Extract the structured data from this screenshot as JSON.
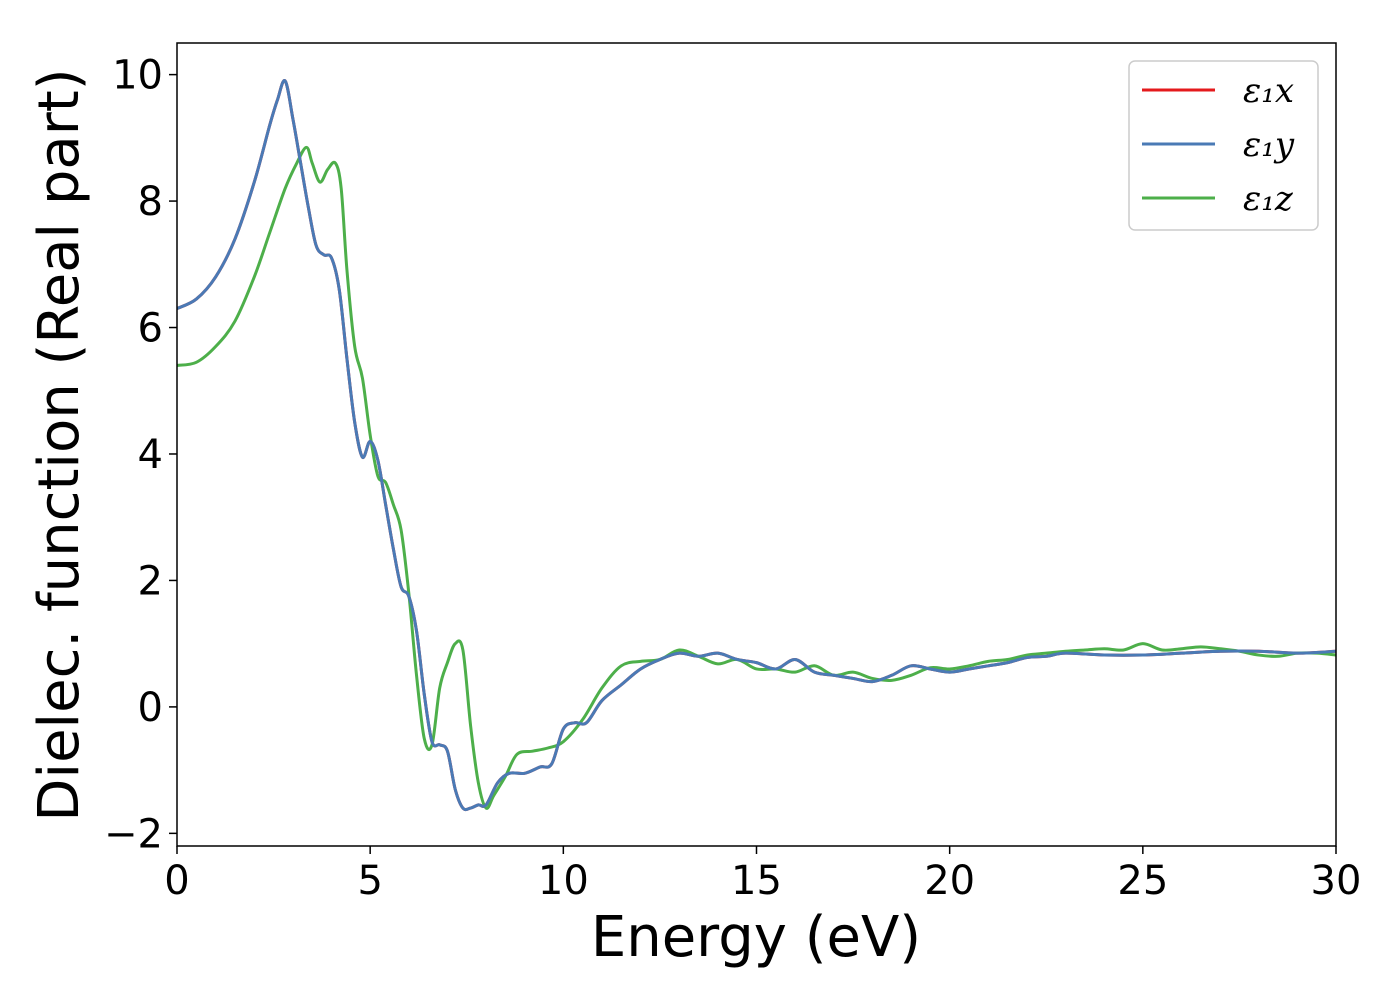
{
  "chart_data": {
    "type": "line",
    "title": "",
    "xlabel": "Energy (eV)",
    "ylabel": "Dielec. function (Real part)",
    "xlim": [
      0,
      30
    ],
    "ylim": [
      -2.2,
      10.5
    ],
    "xticks": [
      0,
      5,
      10,
      15,
      20,
      25,
      30
    ],
    "xtick_labels": [
      "0",
      "5",
      "10",
      "15",
      "20",
      "25",
      "30"
    ],
    "yticks": [
      -2,
      0,
      2,
      4,
      6,
      8,
      10
    ],
    "ytick_labels": [
      "−2",
      "0",
      "2",
      "4",
      "6",
      "8",
      "10"
    ],
    "grid": false,
    "legend_position": "top-right",
    "series": [
      {
        "name": "ε₁x",
        "color": "#e41a1c",
        "x": [
          0,
          0.5,
          1.0,
          1.5,
          2.0,
          2.4,
          2.6,
          2.8,
          3.0,
          3.2,
          3.4,
          3.6,
          3.8,
          4.0,
          4.2,
          4.4,
          4.6,
          4.8,
          5.0,
          5.2,
          5.4,
          5.6,
          5.8,
          6.0,
          6.2,
          6.4,
          6.6,
          6.8,
          7.0,
          7.2,
          7.4,
          7.6,
          7.8,
          8.0,
          8.3,
          8.6,
          9.0,
          9.4,
          9.7,
          10.0,
          10.3,
          10.6,
          11.0,
          11.5,
          12.0,
          12.5,
          13.0,
          13.5,
          14.0,
          14.5,
          15.0,
          15.5,
          16.0,
          16.5,
          17.0,
          17.5,
          18.0,
          18.5,
          19.0,
          19.5,
          20.0,
          20.5,
          21.0,
          21.5,
          22.0,
          22.5,
          23.0,
          24.0,
          25.0,
          26.0,
          27.0,
          28.0,
          29.0,
          30.0
        ],
        "y": [
          6.3,
          6.45,
          6.8,
          7.4,
          8.3,
          9.2,
          9.6,
          9.9,
          9.3,
          8.6,
          7.9,
          7.3,
          7.15,
          7.1,
          6.6,
          5.5,
          4.5,
          3.95,
          4.2,
          3.9,
          3.2,
          2.5,
          1.9,
          1.75,
          1.2,
          0.2,
          -0.55,
          -0.6,
          -0.7,
          -1.3,
          -1.6,
          -1.6,
          -1.55,
          -1.55,
          -1.2,
          -1.05,
          -1.05,
          -0.95,
          -0.9,
          -0.35,
          -0.25,
          -0.25,
          0.1,
          0.35,
          0.6,
          0.75,
          0.85,
          0.8,
          0.85,
          0.75,
          0.7,
          0.6,
          0.75,
          0.55,
          0.5,
          0.45,
          0.4,
          0.5,
          0.65,
          0.6,
          0.55,
          0.6,
          0.65,
          0.7,
          0.78,
          0.8,
          0.85,
          0.82,
          0.82,
          0.85,
          0.88,
          0.88,
          0.85,
          0.88
        ]
      },
      {
        "name": "ε₁y",
        "color": "#4a7ab5",
        "x": [
          0,
          0.5,
          1.0,
          1.5,
          2.0,
          2.4,
          2.6,
          2.8,
          3.0,
          3.2,
          3.4,
          3.6,
          3.8,
          4.0,
          4.2,
          4.4,
          4.6,
          4.8,
          5.0,
          5.2,
          5.4,
          5.6,
          5.8,
          6.0,
          6.2,
          6.4,
          6.6,
          6.8,
          7.0,
          7.2,
          7.4,
          7.6,
          7.8,
          8.0,
          8.3,
          8.6,
          9.0,
          9.4,
          9.7,
          10.0,
          10.3,
          10.6,
          11.0,
          11.5,
          12.0,
          12.5,
          13.0,
          13.5,
          14.0,
          14.5,
          15.0,
          15.5,
          16.0,
          16.5,
          17.0,
          17.5,
          18.0,
          18.5,
          19.0,
          19.5,
          20.0,
          20.5,
          21.0,
          21.5,
          22.0,
          22.5,
          23.0,
          24.0,
          25.0,
          26.0,
          27.0,
          28.0,
          29.0,
          30.0
        ],
        "y": [
          6.3,
          6.45,
          6.8,
          7.4,
          8.3,
          9.2,
          9.6,
          9.9,
          9.3,
          8.6,
          7.9,
          7.3,
          7.15,
          7.1,
          6.6,
          5.5,
          4.5,
          3.95,
          4.2,
          3.9,
          3.2,
          2.5,
          1.9,
          1.75,
          1.2,
          0.2,
          -0.55,
          -0.6,
          -0.7,
          -1.3,
          -1.6,
          -1.6,
          -1.55,
          -1.55,
          -1.2,
          -1.05,
          -1.05,
          -0.95,
          -0.9,
          -0.35,
          -0.25,
          -0.25,
          0.1,
          0.35,
          0.6,
          0.75,
          0.85,
          0.8,
          0.85,
          0.75,
          0.7,
          0.6,
          0.75,
          0.55,
          0.5,
          0.45,
          0.4,
          0.5,
          0.65,
          0.6,
          0.55,
          0.6,
          0.65,
          0.7,
          0.78,
          0.8,
          0.85,
          0.82,
          0.82,
          0.85,
          0.88,
          0.88,
          0.85,
          0.88
        ]
      },
      {
        "name": "ε₁z",
        "color": "#4daf4a",
        "x": [
          0,
          0.5,
          1.0,
          1.5,
          2.0,
          2.4,
          2.8,
          3.1,
          3.35,
          3.5,
          3.7,
          3.9,
          4.1,
          4.25,
          4.4,
          4.6,
          4.8,
          5.0,
          5.2,
          5.4,
          5.6,
          5.8,
          6.0,
          6.2,
          6.4,
          6.6,
          6.8,
          7.0,
          7.2,
          7.4,
          7.6,
          7.8,
          8.0,
          8.2,
          8.5,
          8.8,
          9.2,
          9.6,
          10.0,
          10.5,
          11.0,
          11.5,
          12.0,
          12.5,
          13.0,
          13.5,
          14.0,
          14.5,
          15.0,
          15.5,
          16.0,
          16.5,
          17.0,
          17.5,
          18.0,
          18.5,
          19.0,
          19.5,
          20.0,
          20.5,
          21.0,
          21.5,
          22.0,
          22.5,
          23.0,
          23.5,
          24.0,
          24.5,
          25.0,
          25.5,
          26.0,
          26.5,
          27.0,
          27.5,
          28.0,
          28.5,
          29.0,
          29.5,
          30.0
        ],
        "y": [
          5.4,
          5.45,
          5.7,
          6.1,
          6.8,
          7.5,
          8.2,
          8.6,
          8.85,
          8.6,
          8.3,
          8.5,
          8.6,
          8.2,
          6.9,
          5.7,
          5.2,
          4.3,
          3.65,
          3.55,
          3.2,
          2.8,
          1.8,
          0.5,
          -0.5,
          -0.6,
          0.3,
          0.7,
          1.0,
          0.9,
          -0.3,
          -1.2,
          -1.6,
          -1.4,
          -1.1,
          -0.75,
          -0.7,
          -0.65,
          -0.55,
          -0.2,
          0.3,
          0.65,
          0.72,
          0.75,
          0.9,
          0.8,
          0.68,
          0.75,
          0.6,
          0.6,
          0.55,
          0.65,
          0.5,
          0.55,
          0.45,
          0.42,
          0.5,
          0.62,
          0.6,
          0.65,
          0.72,
          0.75,
          0.82,
          0.85,
          0.88,
          0.9,
          0.92,
          0.9,
          1.0,
          0.9,
          0.92,
          0.95,
          0.92,
          0.88,
          0.82,
          0.8,
          0.85,
          0.85,
          0.82
        ]
      }
    ]
  }
}
